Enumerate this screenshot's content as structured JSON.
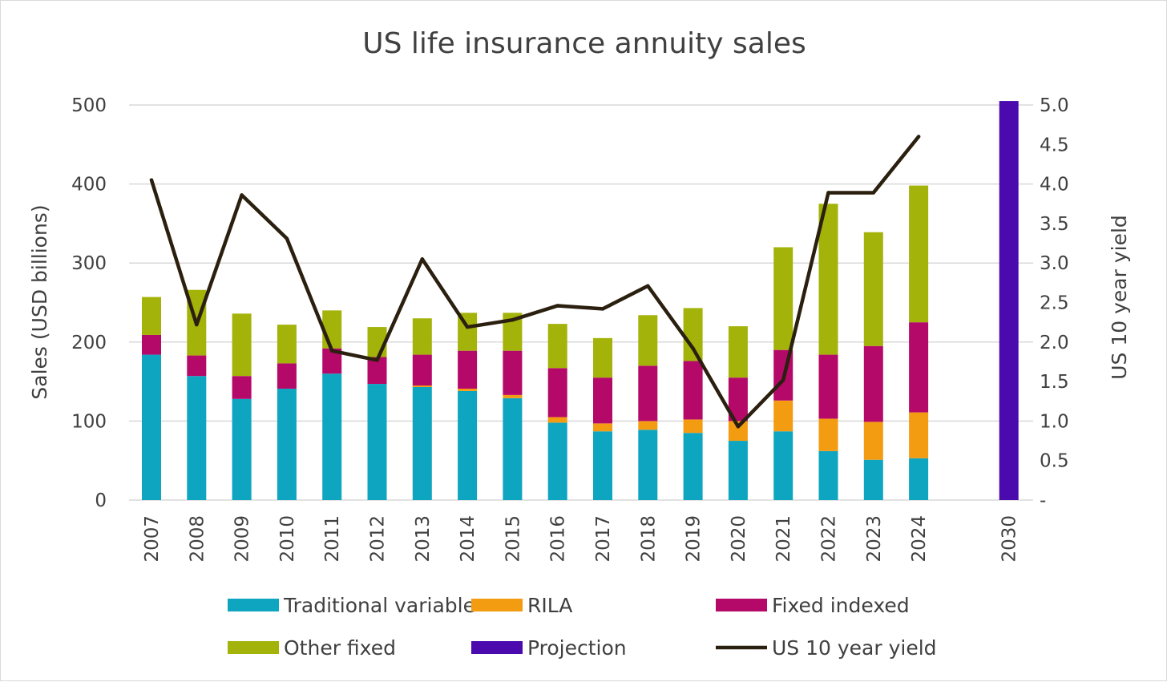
{
  "chart_data": {
    "type": "bar",
    "title": "US life insurance annuity sales",
    "ylabel": "Sales (USD billions)",
    "y2label": "US 10 year yield",
    "ylim": [
      0,
      500
    ],
    "y2lim": [
      0,
      5.0
    ],
    "yticks": [
      "0",
      "100",
      "200",
      "300",
      "400",
      "500"
    ],
    "y2ticks": [
      "-",
      "0.5",
      "1.0",
      "1.5",
      "2.0",
      "2.5",
      "3.0",
      "3.5",
      "4.0",
      "4.5",
      "5.0"
    ],
    "categories": [
      "2007",
      "2008",
      "2009",
      "2010",
      "2011",
      "2012",
      "2013",
      "2014",
      "2015",
      "2016",
      "2017",
      "2018",
      "2019",
      "2020",
      "2021",
      "2022",
      "2023",
      "2024",
      "",
      "2030"
    ],
    "stacked": true,
    "grid": true,
    "legend_position": "bottom",
    "series": [
      {
        "name": "Traditional variable",
        "color": "#0ea5c0",
        "values": [
          184,
          157,
          128,
          141,
          160,
          147,
          143,
          138,
          129,
          98,
          87,
          89,
          85,
          75,
          87,
          62,
          51,
          53,
          0,
          0
        ]
      },
      {
        "name": "RILA",
        "color": "#f39c12",
        "values": [
          0,
          0,
          0,
          0,
          0,
          0,
          2,
          3,
          4,
          7,
          10,
          11,
          17,
          25,
          39,
          41,
          48,
          58,
          0,
          0
        ]
      },
      {
        "name": "Fixed indexed",
        "color": "#b5096a",
        "values": [
          25,
          26,
          29,
          32,
          32,
          34,
          39,
          48,
          56,
          62,
          58,
          70,
          74,
          55,
          64,
          81,
          96,
          114,
          0,
          0
        ]
      },
      {
        "name": "Other fixed",
        "color": "#a4b30a",
        "values": [
          48,
          83,
          79,
          49,
          48,
          38,
          46,
          48,
          48,
          56,
          50,
          64,
          67,
          65,
          130,
          191,
          144,
          173,
          0,
          0
        ]
      },
      {
        "name": "Projection",
        "color": "#4a0aad",
        "values": [
          0,
          0,
          0,
          0,
          0,
          0,
          0,
          0,
          0,
          0,
          0,
          0,
          0,
          0,
          0,
          0,
          0,
          0,
          0,
          505
        ]
      }
    ],
    "line_series": {
      "name": "US 10 year yield",
      "color": "#2b1f0f",
      "axis": "right",
      "values": [
        4.05,
        2.22,
        3.86,
        3.31,
        1.89,
        1.77,
        3.05,
        2.19,
        2.28,
        2.46,
        2.42,
        2.71,
        1.92,
        0.93,
        1.52,
        3.89,
        3.89,
        4.6
      ]
    }
  }
}
